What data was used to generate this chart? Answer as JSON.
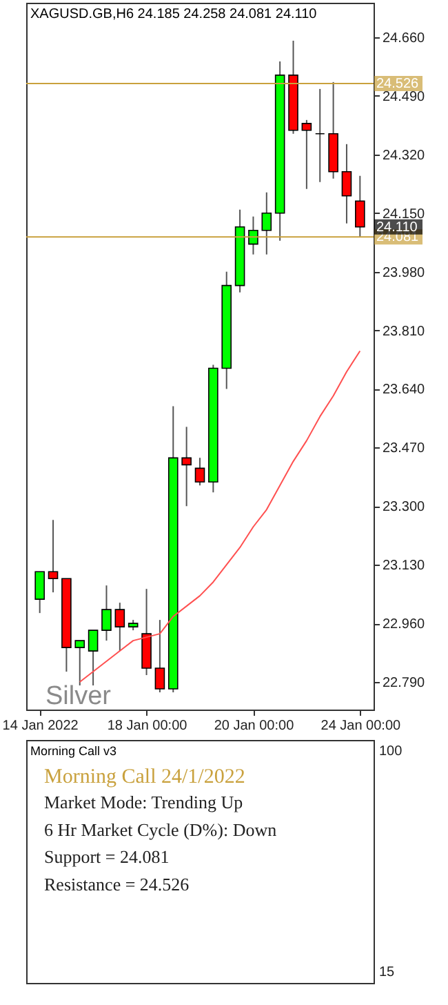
{
  "chart_data": [
    {
      "type": "candlestick",
      "title": "XAGUSD.GB,H6 24.185 24.258 24.081 24.110",
      "categories": [
        "14 Jan 2022",
        null,
        null,
        null,
        null,
        null,
        null,
        null,
        "18 Jan 00:00",
        null,
        null,
        null,
        null,
        null,
        null,
        null,
        "20 Jan 00:00",
        null,
        null,
        null,
        null,
        null,
        null,
        null,
        "24 Jan 00:00"
      ],
      "ohlc": [
        [
          23.03,
          23.11,
          22.99,
          23.11
        ],
        [
          23.11,
          23.26,
          23.05,
          23.09
        ],
        [
          23.09,
          23.09,
          22.82,
          22.89
        ],
        [
          22.89,
          22.91,
          22.78,
          22.91
        ],
        [
          22.88,
          22.94,
          22.78,
          22.94
        ],
        [
          22.94,
          23.07,
          22.91,
          23.0
        ],
        [
          23.0,
          23.02,
          22.88,
          22.95
        ],
        [
          22.95,
          22.97,
          22.94,
          22.96
        ],
        [
          22.93,
          23.06,
          22.81,
          22.83
        ],
        [
          22.83,
          22.97,
          22.76,
          22.77
        ],
        [
          22.77,
          23.59,
          22.76,
          23.44
        ],
        [
          23.44,
          23.53,
          23.3,
          23.42
        ],
        [
          23.41,
          23.44,
          23.36,
          23.37
        ],
        [
          23.37,
          23.71,
          23.34,
          23.7
        ],
        [
          23.7,
          23.98,
          23.64,
          23.94
        ],
        [
          23.94,
          24.16,
          23.92,
          24.11
        ],
        [
          24.06,
          24.14,
          24.03,
          24.1
        ],
        [
          24.1,
          24.21,
          24.03,
          24.15
        ],
        [
          24.15,
          24.59,
          24.07,
          24.55
        ],
        [
          24.55,
          24.65,
          24.38,
          24.39
        ],
        [
          24.41,
          24.42,
          24.22,
          24.39
        ],
        [
          24.38,
          24.51,
          24.24,
          24.38
        ],
        [
          24.38,
          24.53,
          24.25,
          24.27
        ],
        [
          24.27,
          24.35,
          24.12,
          24.2
        ],
        [
          24.185,
          24.258,
          24.081,
          24.11
        ]
      ],
      "colors": [
        "#00ff00",
        "#ff0000",
        "#ff0000",
        "#00ff00",
        "#00ff00",
        "#00ff00",
        "#ff0000",
        "#00ff00",
        "#ff0000",
        "#ff0000",
        "#00ff00",
        "#ff0000",
        "#ff0000",
        "#00ff00",
        "#00ff00",
        "#00ff00",
        "#00ff00",
        "#00ff00",
        "#00ff00",
        "#ff0000",
        "#ff0000",
        "#000000",
        "#ff0000",
        "#ff0000",
        "#ff0000"
      ],
      "series": [
        {
          "type": "line",
          "color": "#ff5050",
          "values": [
            null,
            null,
            null,
            22.79,
            22.82,
            22.85,
            22.88,
            22.91,
            22.92,
            22.93,
            22.98,
            23.01,
            23.04,
            23.08,
            23.13,
            23.18,
            23.24,
            23.29,
            23.36,
            23.43,
            23.49,
            23.56,
            23.62,
            23.69,
            23.75
          ]
        }
      ],
      "ylim": [
        22.71,
        24.76
      ],
      "yticks": [
        {
          "value": 22.79,
          "label": "22.790"
        },
        {
          "value": 22.96,
          "label": "22.960"
        },
        {
          "value": 23.13,
          "label": "23.130"
        },
        {
          "value": 23.3,
          "label": "23.300"
        },
        {
          "value": 23.47,
          "label": "23.470"
        },
        {
          "value": 23.64,
          "label": "23.640"
        },
        {
          "value": 23.81,
          "label": "23.810"
        },
        {
          "value": 23.98,
          "label": "23.980"
        },
        {
          "value": 24.15,
          "label": "24.150"
        },
        {
          "value": 24.32,
          "label": "24.320"
        },
        {
          "value": 24.49,
          "label": "24.490"
        },
        {
          "value": 24.66,
          "label": "24.660"
        }
      ],
      "ref_lines": [
        {
          "axis": "y",
          "value": 24.526,
          "label": "24.526",
          "color": "#c9a13d"
        },
        {
          "axis": "y",
          "value": 24.081,
          "label": "24.081",
          "color": "#c9a13d"
        }
      ],
      "annotations": [
        "Silver",
        "24.110"
      ]
    },
    {
      "type": "other",
      "title": "Morning Call v3",
      "annotations": [
        "Morning Call 24/1/2022",
        "Market Mode: Trending Up",
        "6 Hr Market Cycle (D%): Down",
        "Support = 24.081",
        "Resistance = 24.526",
        "100",
        "15"
      ]
    }
  ]
}
